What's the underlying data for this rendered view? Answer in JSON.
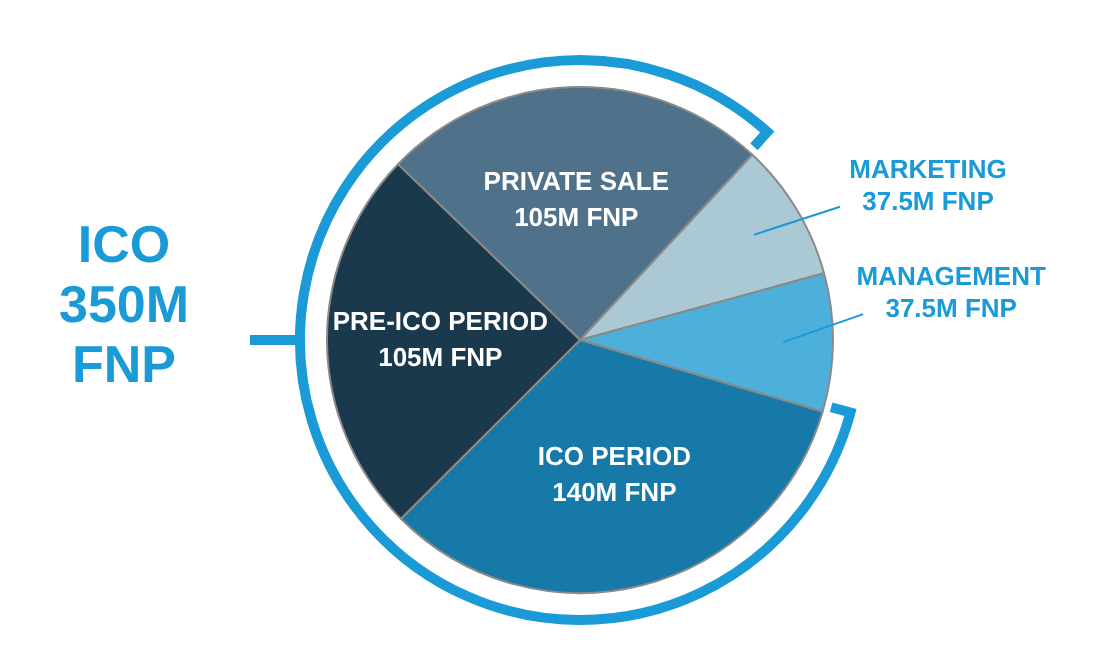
{
  "chart_data": {
    "type": "pie",
    "categories": [
      "PRIVATE SALE",
      "MARKETING",
      "MANAGEMENT",
      "ICO PERIOD",
      "PRE-ICO PERIOD"
    ],
    "values": [
      105,
      37.5,
      37.5,
      140,
      105
    ],
    "value_labels": [
      "105M FNP",
      "37.5M FNP",
      "37.5M FNP",
      "140M FNP",
      "105M FNP"
    ],
    "colors": [
      "#4f7189",
      "#abc9d4",
      "#4cb0da",
      "#1679a8",
      "#1a394c"
    ],
    "annotations": [
      "ICO 350M FNP"
    ],
    "legend": false
  }
}
